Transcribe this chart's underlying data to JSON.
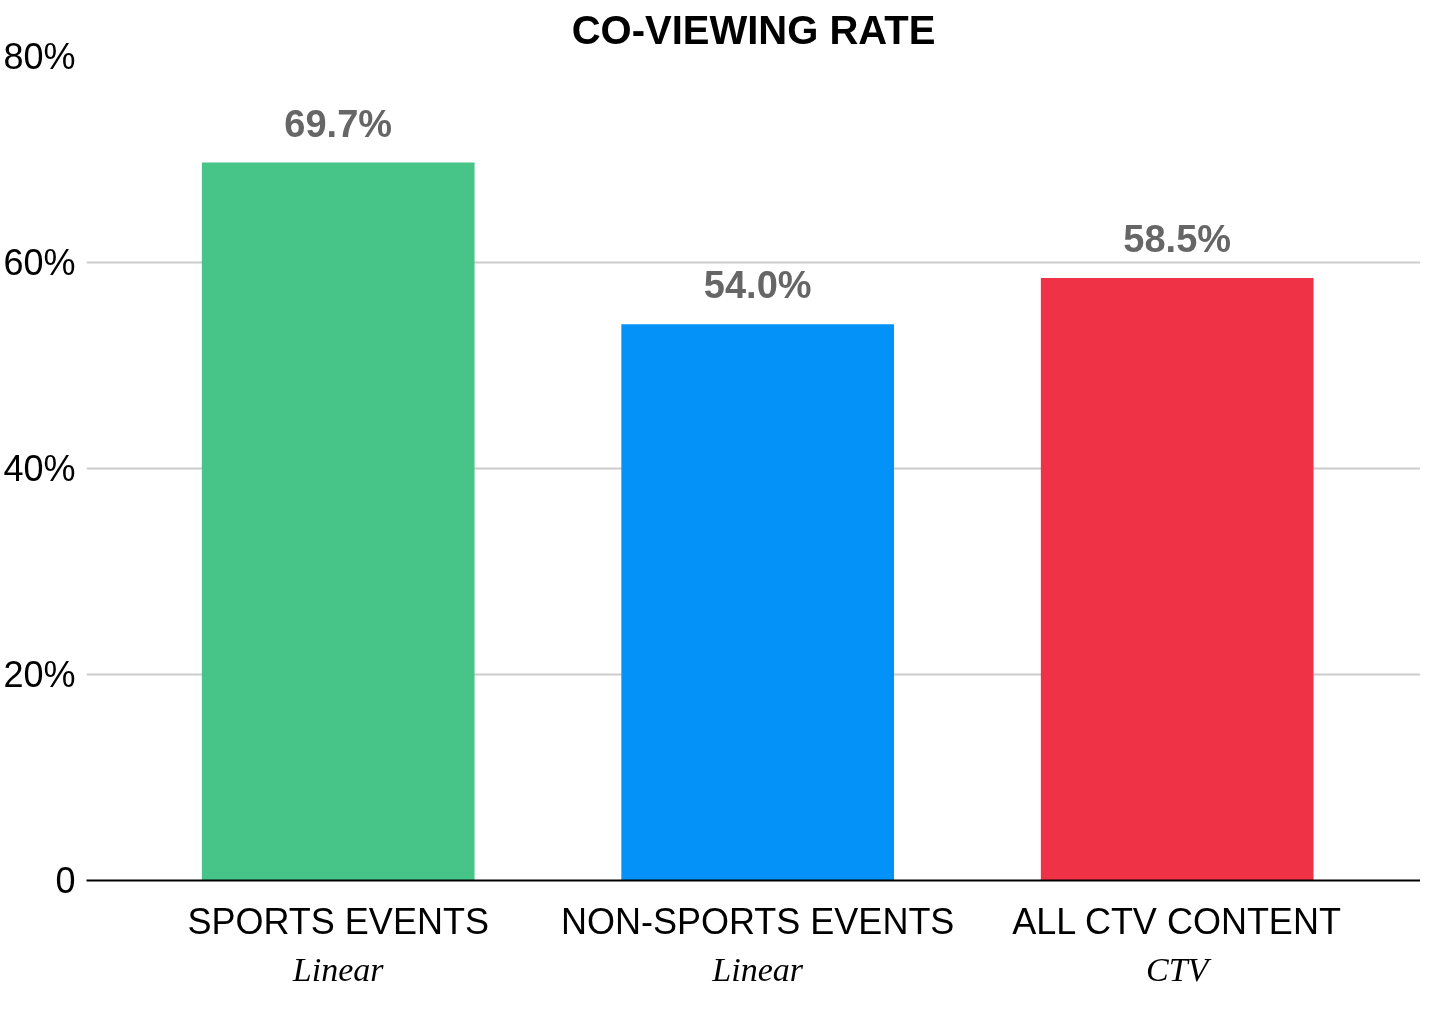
{
  "chart_data": {
    "type": "bar",
    "title": "CO-VIEWING RATE",
    "categories": [
      "SPORTS EVENTS\nLinear",
      "NON-SPORTS EVENTS\nLinear",
      "ALL CTV CONTENT\nCTV"
    ],
    "values": [
      69.7,
      54.0,
      58.5
    ],
    "colors": [
      "#47c488",
      "#0491f8",
      "#f03246"
    ],
    "value_labels": [
      "69.7%",
      "54.0%",
      "58.5%"
    ],
    "ylim": [
      0,
      80
    ],
    "yticks": [
      {
        "value": 0,
        "label": "0"
      },
      {
        "value": 20,
        "label": "20%"
      },
      {
        "value": 40,
        "label": "40%"
      },
      {
        "value": 60,
        "label": "60%"
      },
      {
        "value": 80,
        "label": "80%"
      }
    ],
    "grid": "y"
  }
}
